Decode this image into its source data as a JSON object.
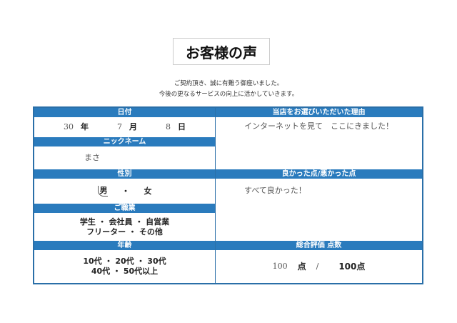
{
  "title": "お客様の声",
  "intro": [
    "ご契約頂き、誠に有難う御座いました。",
    "今後の更なるサービスの向上に活かしていきます。"
  ],
  "left": {
    "date": {
      "header": "日付",
      "year": "30",
      "year_label": "年",
      "month": "7",
      "month_label": "月",
      "day": "8",
      "day_label": "日"
    },
    "nickname": {
      "header": "ニックネーム",
      "value": "まさ"
    },
    "gender": {
      "header": "性別",
      "options": [
        "男",
        "女"
      ],
      "selected": "男",
      "sep": "・"
    },
    "occupation": {
      "header": "ご職業",
      "line1": "学生 ・ 会社員 ・ 自営業",
      "line2": "フリーター ・ その他",
      "selected": "会社員"
    },
    "age": {
      "header": "年齢",
      "line1": "10代 ・ 20代 ・ 30代",
      "line2": "40代 ・ 50代以上",
      "selected": "20代"
    }
  },
  "right": {
    "reason": {
      "header": "当店をお選びいただいた理由",
      "value": "インターネットを見て　ここにきました！"
    },
    "feedback": {
      "header": "良かった点/悪かった点",
      "value": "すべて良かった！"
    },
    "score": {
      "header": "総合評価 点数",
      "value": "100",
      "unit": "点",
      "sep": "/",
      "max": "100点"
    }
  },
  "colors": {
    "header": "#2a7bbd",
    "border": "#2a6fa8"
  }
}
